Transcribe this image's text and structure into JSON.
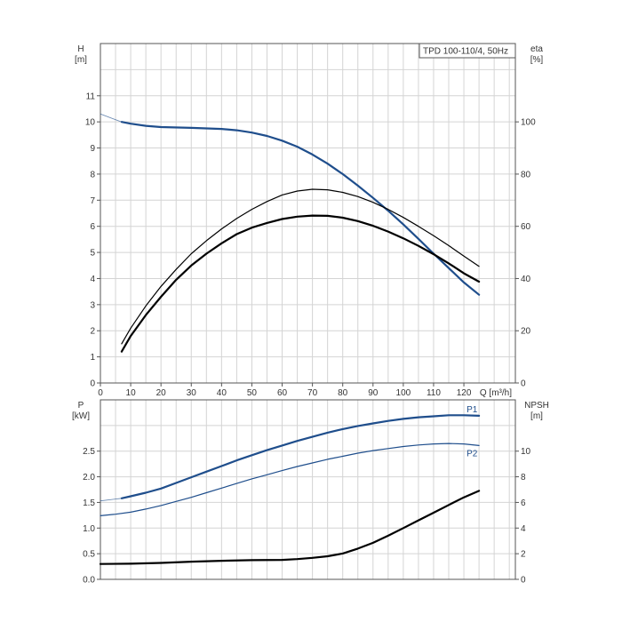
{
  "chart_data": [
    {
      "type": "line",
      "label_box": "TPD 100-110/4, 50Hz",
      "xlabel": "Q [m³/h]",
      "ylabel_left": {
        "name": "H",
        "unit": "[m]"
      },
      "ylabel_right": {
        "name": "eta",
        "unit": "[%]"
      },
      "xlim": [
        0,
        137
      ],
      "ylim_left": [
        0,
        13
      ],
      "ylim_right": [
        0,
        130
      ],
      "x_ticks": [
        "0",
        "10",
        "20",
        "30",
        "40",
        "50",
        "60",
        "70",
        "80",
        "90",
        "100",
        "110",
        "120"
      ],
      "y_ticks_left": [
        "0",
        "1",
        "2",
        "3",
        "4",
        "5",
        "6",
        "7",
        "8",
        "9",
        "10",
        "11"
      ],
      "y_ticks_right": [
        "0",
        "20",
        "40",
        "60",
        "80",
        "100"
      ],
      "grid": true,
      "series": [
        {
          "axis": "left",
          "color": "#1f4e8c",
          "thin_extension": {
            "x": [
              0,
              7
            ],
            "y": [
              10.3,
              10.0
            ]
          },
          "x": [
            7,
            10,
            15,
            20,
            30,
            40,
            45,
            50,
            55,
            60,
            65,
            70,
            75,
            80,
            85,
            90,
            95,
            100,
            105,
            110,
            115,
            120,
            125
          ],
          "y": [
            10.0,
            9.93,
            9.85,
            9.8,
            9.77,
            9.73,
            9.68,
            9.59,
            9.46,
            9.28,
            9.05,
            8.75,
            8.4,
            8.0,
            7.56,
            7.09,
            6.6,
            6.07,
            5.52,
            4.95,
            4.4,
            3.85,
            3.38
          ]
        },
        {
          "axis": "right",
          "color": "#000000",
          "x": [
            7,
            10,
            15,
            20,
            25,
            30,
            35,
            40,
            45,
            50,
            55,
            60,
            65,
            70,
            75,
            80,
            85,
            90,
            95,
            100,
            105,
            110,
            115,
            120,
            125
          ],
          "y": [
            12,
            18,
            26,
            33,
            39.5,
            45,
            49.5,
            53.5,
            57,
            59.5,
            61.3,
            62.8,
            63.7,
            64.1,
            64.0,
            63.3,
            62.0,
            60.2,
            58.0,
            55.4,
            52.5,
            49.3,
            45.8,
            42.0,
            38.8
          ]
        },
        {
          "axis": "right",
          "color": "#000000",
          "x": [
            7,
            10,
            15,
            20,
            25,
            30,
            35,
            40,
            45,
            50,
            55,
            60,
            65,
            70,
            75,
            80,
            85,
            90,
            95,
            100,
            105,
            110,
            115,
            120,
            125
          ],
          "y": [
            15,
            21,
            29.5,
            37,
            43.5,
            49.5,
            54.5,
            59,
            63,
            66.5,
            69.5,
            72,
            73.5,
            74.2,
            74.0,
            73.0,
            71.4,
            69.2,
            66.5,
            63.4,
            60.0,
            56.4,
            52.6,
            48.6,
            44.7
          ]
        }
      ]
    },
    {
      "type": "line",
      "xlabel": "",
      "ylabel_left": {
        "name": "P",
        "unit": "[kW]"
      },
      "ylabel_right": {
        "name": "NPSH",
        "unit": "[m]"
      },
      "xlim": [
        0,
        137
      ],
      "ylim_left": [
        0,
        3.5
      ],
      "ylim_right": [
        0,
        14
      ],
      "y_ticks_left": [
        "0.0",
        "0.5",
        "1.0",
        "1.5",
        "2.0",
        "2.5"
      ],
      "y_ticks_right": [
        "0",
        "2",
        "4",
        "6",
        "8",
        "10"
      ],
      "grid": true,
      "series": [
        {
          "name": "P1",
          "axis": "left",
          "color": "#1f4e8c",
          "thin_extension": {
            "x": [
              0,
              7
            ],
            "y": [
              1.53,
              1.58
            ]
          },
          "x": [
            7,
            10,
            15,
            20,
            25,
            30,
            35,
            40,
            45,
            50,
            55,
            60,
            65,
            70,
            75,
            80,
            85,
            90,
            95,
            100,
            105,
            110,
            115,
            120,
            125
          ],
          "y": [
            1.58,
            1.62,
            1.69,
            1.77,
            1.88,
            1.99,
            2.1,
            2.21,
            2.32,
            2.42,
            2.52,
            2.61,
            2.7,
            2.78,
            2.86,
            2.93,
            2.99,
            3.04,
            3.09,
            3.13,
            3.16,
            3.18,
            3.2,
            3.2,
            3.19
          ]
        },
        {
          "name": "P2",
          "axis": "left",
          "color": "#1f4e8c",
          "x": [
            0,
            5,
            10,
            15,
            20,
            25,
            30,
            35,
            40,
            45,
            50,
            55,
            60,
            65,
            70,
            75,
            80,
            85,
            90,
            95,
            100,
            105,
            110,
            115,
            120,
            125
          ],
          "y": [
            1.24,
            1.27,
            1.31,
            1.37,
            1.44,
            1.52,
            1.6,
            1.69,
            1.78,
            1.87,
            1.96,
            2.04,
            2.12,
            2.2,
            2.27,
            2.34,
            2.4,
            2.46,
            2.51,
            2.55,
            2.59,
            2.62,
            2.64,
            2.65,
            2.64,
            2.61
          ]
        },
        {
          "axis": "right",
          "color": "#000000",
          "x": [
            0,
            10,
            20,
            30,
            40,
            50,
            60,
            65,
            70,
            75,
            80,
            85,
            90,
            95,
            100,
            105,
            110,
            115,
            120,
            125
          ],
          "y": [
            1.2,
            1.22,
            1.28,
            1.38,
            1.45,
            1.5,
            1.52,
            1.58,
            1.68,
            1.8,
            2.02,
            2.4,
            2.85,
            3.4,
            4.0,
            4.6,
            5.2,
            5.8,
            6.4,
            6.9
          ]
        }
      ]
    }
  ]
}
